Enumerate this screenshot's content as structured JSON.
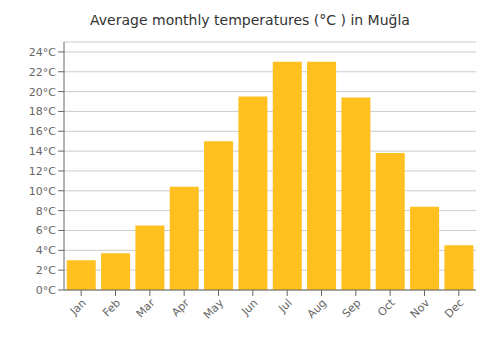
{
  "chart_data": {
    "type": "bar",
    "title": "Average monthly temperatures (°C ) in Muğla",
    "categories": [
      "Jan",
      "Feb",
      "Mar",
      "Apr",
      "May",
      "Jun",
      "Jul",
      "Aug",
      "Sep",
      "Oct",
      "Nov",
      "Dec"
    ],
    "values": [
      3.0,
      3.7,
      6.5,
      10.4,
      15.0,
      19.5,
      23.0,
      23.0,
      19.4,
      13.8,
      8.4,
      4.5
    ],
    "color": "#FFC020",
    "ylim": [
      0,
      25
    ],
    "yticks": [
      {
        "value": 0,
        "label": "0°C"
      },
      {
        "value": 2,
        "label": "2°C"
      },
      {
        "value": 4,
        "label": "4°C"
      },
      {
        "value": 6,
        "label": "6°C"
      },
      {
        "value": 8,
        "label": "8°C"
      },
      {
        "value": 10,
        "label": "10°C"
      },
      {
        "value": 12,
        "label": "12°C"
      },
      {
        "value": 14,
        "label": "14°C"
      },
      {
        "value": 16,
        "label": "16°C"
      },
      {
        "value": 18,
        "label": "18°C"
      },
      {
        "value": 20,
        "label": "20°C"
      },
      {
        "value": 22,
        "label": "22°C"
      },
      {
        "value": 24,
        "label": "24°C"
      }
    ],
    "grid": true
  }
}
